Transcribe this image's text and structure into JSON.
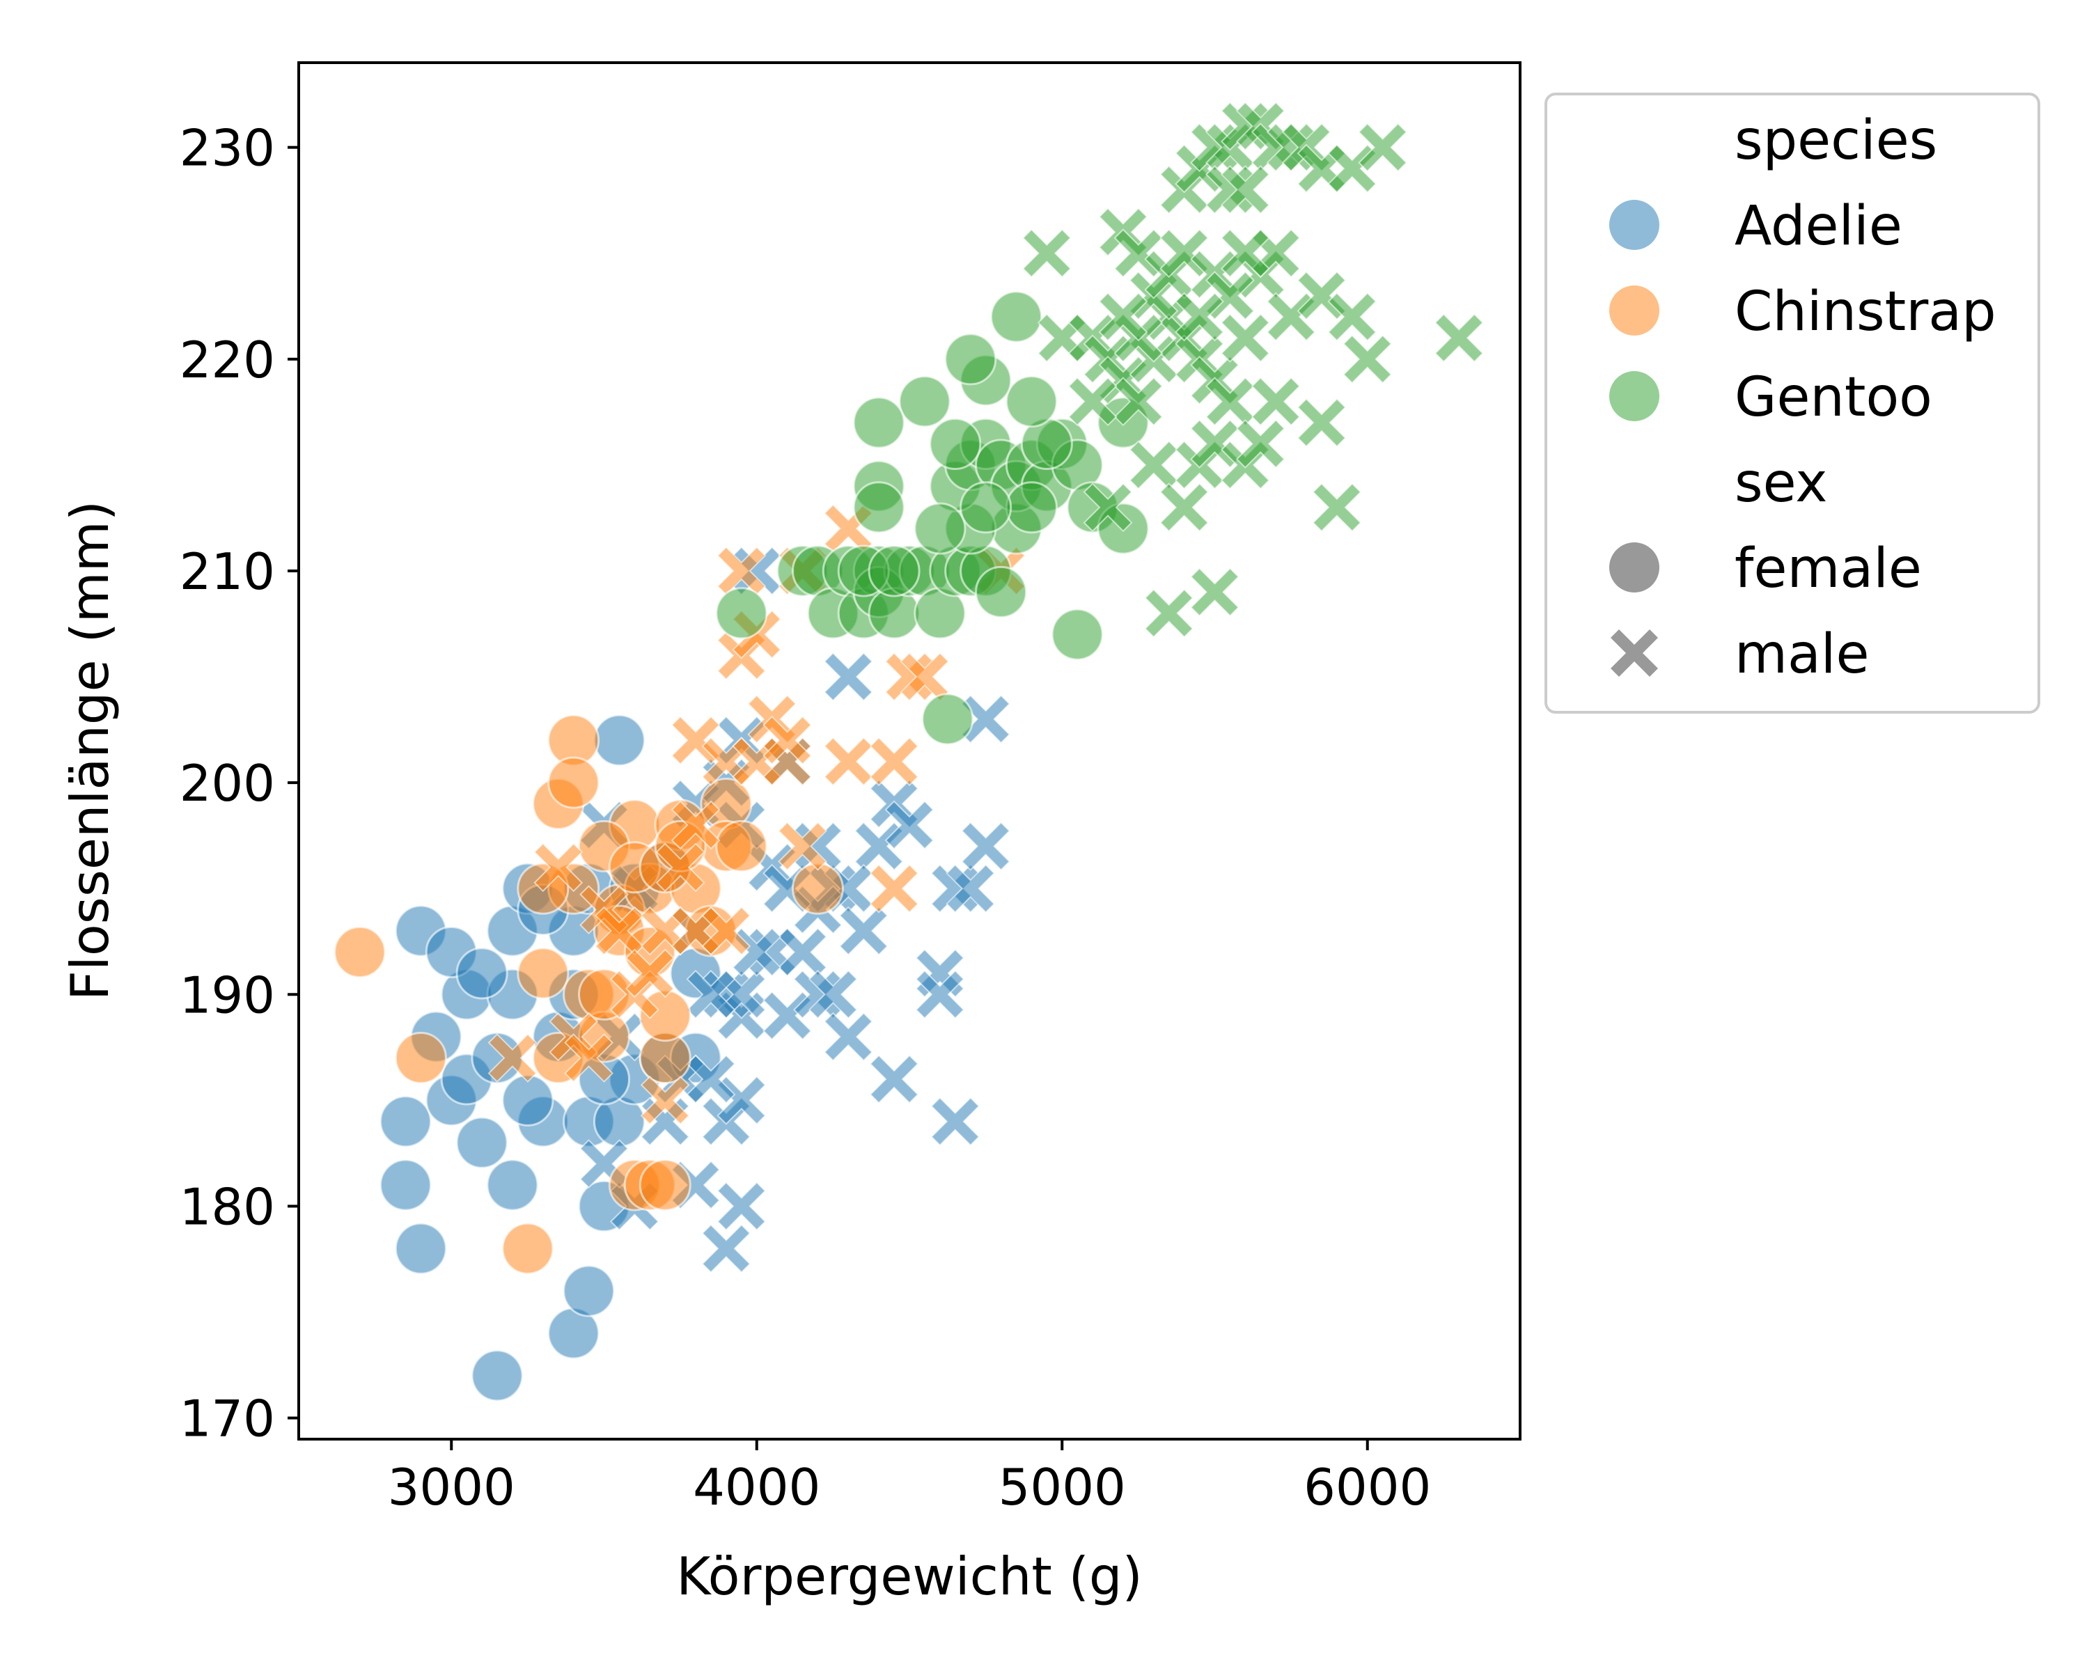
{
  "chart_data": {
    "type": "scatter",
    "title": "",
    "xlabel": "Körpergewicht (g)",
    "ylabel": "Flossenlänge (mm)",
    "xlim": [
      2500,
      6500
    ],
    "ylim": [
      169,
      234
    ],
    "xticks": [
      3000,
      4000,
      5000,
      6000
    ],
    "yticks": [
      170,
      180,
      190,
      200,
      210,
      220,
      230
    ],
    "grid": false,
    "marker_opacity": 0.5,
    "legend": {
      "position": "outside-right-top",
      "hue_title": "species",
      "style_title": "sex",
      "hue_entries": [
        {
          "label": "Adelie",
          "color": "#1f77b4"
        },
        {
          "label": "Chinstrap",
          "color": "#ff7f0e"
        },
        {
          "label": "Gentoo",
          "color": "#2ca02c"
        }
      ],
      "style_entries": [
        {
          "label": "female",
          "marker": "circle"
        },
        {
          "label": "male",
          "marker": "x"
        }
      ]
    },
    "series": [
      {
        "name": "Adelie",
        "sex": "female",
        "marker": "circle",
        "color": "#1f77b4",
        "points": [
          [
            3150,
            172
          ],
          [
            3400,
            174
          ],
          [
            3450,
            176
          ],
          [
            2900,
            178
          ],
          [
            2850,
            181
          ],
          [
            3200,
            181
          ],
          [
            3500,
            180
          ],
          [
            2850,
            184
          ],
          [
            3100,
            183
          ],
          [
            3300,
            184
          ],
          [
            3000,
            185
          ],
          [
            3250,
            185
          ],
          [
            3450,
            184
          ],
          [
            3550,
            184
          ],
          [
            3600,
            186
          ],
          [
            3050,
            186
          ],
          [
            3150,
            187
          ],
          [
            3700,
            187
          ],
          [
            3800,
            187
          ],
          [
            2950,
            188
          ],
          [
            3350,
            188
          ],
          [
            3050,
            190
          ],
          [
            3200,
            190
          ],
          [
            3400,
            190
          ],
          [
            2900,
            193
          ],
          [
            3000,
            192
          ],
          [
            3200,
            193
          ],
          [
            3400,
            193
          ],
          [
            3450,
            195
          ],
          [
            3250,
            195
          ],
          [
            3300,
            194
          ],
          [
            3600,
            195
          ],
          [
            3550,
            202
          ],
          [
            3700,
            196
          ],
          [
            3800,
            191
          ],
          [
            3100,
            191
          ],
          [
            3500,
            186
          ]
        ]
      },
      {
        "name": "Adelie",
        "sex": "male",
        "marker": "x",
        "color": "#1f77b4",
        "points": [
          [
            3600,
            180
          ],
          [
            3800,
            181
          ],
          [
            3900,
            178
          ],
          [
            3950,
            180
          ],
          [
            3900,
            184
          ],
          [
            3950,
            185
          ],
          [
            3500,
            182
          ],
          [
            3700,
            184
          ],
          [
            3750,
            186
          ],
          [
            3850,
            186
          ],
          [
            3950,
            189
          ],
          [
            4100,
            189
          ],
          [
            3900,
            190
          ],
          [
            3950,
            190
          ],
          [
            4050,
            192
          ],
          [
            4150,
            192
          ],
          [
            4200,
            190
          ],
          [
            4250,
            190
          ],
          [
            4300,
            188
          ],
          [
            4450,
            186
          ],
          [
            4650,
            184
          ],
          [
            4600,
            191
          ],
          [
            4600,
            190
          ],
          [
            4650,
            195
          ],
          [
            4700,
            195
          ],
          [
            4750,
            197
          ],
          [
            4400,
            197
          ],
          [
            4450,
            199
          ],
          [
            4500,
            198
          ],
          [
            4250,
            195
          ],
          [
            4300,
            195
          ],
          [
            4200,
            194
          ],
          [
            4050,
            196
          ],
          [
            3950,
            198
          ],
          [
            3800,
            199
          ],
          [
            3900,
            200
          ],
          [
            3950,
            202
          ],
          [
            4100,
            201
          ],
          [
            4300,
            205
          ],
          [
            4750,
            203
          ],
          [
            3500,
            198
          ],
          [
            3600,
            195
          ],
          [
            3800,
            193
          ],
          [
            4000,
            192
          ],
          [
            4100,
            195
          ],
          [
            4350,
            193
          ],
          [
            3550,
            188
          ],
          [
            4200,
            197
          ],
          [
            4000,
            210
          ],
          [
            3850,
            190
          ]
        ]
      },
      {
        "name": "Chinstrap",
        "sex": "female",
        "marker": "circle",
        "color": "#ff7f0e",
        "points": [
          [
            2700,
            192
          ],
          [
            2900,
            187
          ],
          [
            3250,
            178
          ],
          [
            3300,
            191
          ],
          [
            3350,
            187
          ],
          [
            3350,
            199
          ],
          [
            3400,
            202
          ],
          [
            3400,
            200
          ],
          [
            3450,
            190
          ],
          [
            3500,
            188
          ],
          [
            3550,
            194
          ],
          [
            3550,
            193
          ],
          [
            3600,
            181
          ],
          [
            3650,
            181
          ],
          [
            3700,
            181
          ],
          [
            3600,
            198
          ],
          [
            3650,
            195
          ],
          [
            3700,
            187
          ],
          [
            3700,
            189
          ],
          [
            3750,
            198
          ],
          [
            3800,
            195
          ],
          [
            3850,
            193
          ],
          [
            3900,
            199
          ],
          [
            3900,
            197
          ],
          [
            3950,
            197
          ],
          [
            3500,
            197
          ],
          [
            3600,
            196
          ],
          [
            3650,
            192
          ],
          [
            3700,
            196
          ],
          [
            3750,
            197
          ],
          [
            3400,
            195
          ],
          [
            3500,
            190
          ],
          [
            4200,
            195
          ],
          [
            3300,
            195
          ]
        ]
      },
      {
        "name": "Chinstrap",
        "sex": "male",
        "marker": "x",
        "color": "#ff7f0e",
        "points": [
          [
            3200,
            187
          ],
          [
            3400,
            188
          ],
          [
            3450,
            187
          ],
          [
            3500,
            194
          ],
          [
            3550,
            193
          ],
          [
            3600,
            190
          ],
          [
            3650,
            191
          ],
          [
            3700,
            193
          ],
          [
            3700,
            185
          ],
          [
            3750,
            196
          ],
          [
            3800,
            193
          ],
          [
            3800,
            202
          ],
          [
            3900,
            201
          ],
          [
            3950,
            206
          ],
          [
            4000,
            207
          ],
          [
            3950,
            210
          ],
          [
            4050,
            203
          ],
          [
            4000,
            201
          ],
          [
            4100,
            201
          ],
          [
            4100,
            202
          ],
          [
            4150,
            197
          ],
          [
            4150,
            210
          ],
          [
            4300,
            201
          ],
          [
            4300,
            212
          ],
          [
            4450,
            201
          ],
          [
            4450,
            195
          ],
          [
            4500,
            205
          ],
          [
            4550,
            205
          ],
          [
            4800,
            210
          ],
          [
            3350,
            196
          ],
          [
            3800,
            198
          ],
          [
            3900,
            193
          ]
        ]
      },
      {
        "name": "Gentoo",
        "sex": "female",
        "marker": "circle",
        "color": "#2ca02c",
        "points": [
          [
            3950,
            208
          ],
          [
            4150,
            210
          ],
          [
            4200,
            210
          ],
          [
            4250,
            208
          ],
          [
            4300,
            210
          ],
          [
            4350,
            208
          ],
          [
            4400,
            210
          ],
          [
            4400,
            209
          ],
          [
            4450,
            208
          ],
          [
            4500,
            210
          ],
          [
            4550,
            210
          ],
          [
            4600,
            208
          ],
          [
            4650,
            210
          ],
          [
            4700,
            210
          ],
          [
            4750,
            210
          ],
          [
            4800,
            209
          ],
          [
            4850,
            212
          ],
          [
            4700,
            212
          ],
          [
            4650,
            214
          ],
          [
            4700,
            215
          ],
          [
            4750,
            216
          ],
          [
            4800,
            215
          ],
          [
            4850,
            214
          ],
          [
            4900,
            215
          ],
          [
            4950,
            214
          ],
          [
            5000,
            216
          ],
          [
            5050,
            215
          ],
          [
            4950,
            216
          ],
          [
            4900,
            218
          ],
          [
            4750,
            219
          ],
          [
            4700,
            220
          ],
          [
            4850,
            222
          ],
          [
            4650,
            216
          ],
          [
            4550,
            218
          ],
          [
            4400,
            217
          ],
          [
            4400,
            214
          ],
          [
            4400,
            213
          ],
          [
            4350,
            210
          ],
          [
            5100,
            213
          ],
          [
            5200,
            212
          ],
          [
            5200,
            217
          ],
          [
            5050,
            207
          ],
          [
            4625,
            203
          ],
          [
            4450,
            210
          ],
          [
            4600,
            212
          ],
          [
            4900,
            213
          ],
          [
            4750,
            213
          ]
        ]
      },
      {
        "name": "Gentoo",
        "sex": "male",
        "marker": "x",
        "color": "#2ca02c",
        "points": [
          [
            5000,
            221
          ],
          [
            5100,
            221
          ],
          [
            5150,
            220
          ],
          [
            5200,
            219
          ],
          [
            5250,
            218
          ],
          [
            5300,
            220
          ],
          [
            5350,
            222
          ],
          [
            5400,
            221
          ],
          [
            5450,
            220
          ],
          [
            5500,
            219
          ],
          [
            5550,
            218
          ],
          [
            5600,
            221
          ],
          [
            5650,
            224
          ],
          [
            5700,
            225
          ],
          [
            5750,
            222
          ],
          [
            5850,
            223
          ],
          [
            5950,
            222
          ],
          [
            6000,
            220
          ],
          [
            6300,
            221
          ],
          [
            5200,
            226
          ],
          [
            5250,
            225
          ],
          [
            5300,
            223
          ],
          [
            5350,
            224
          ],
          [
            5400,
            225
          ],
          [
            5500,
            224
          ],
          [
            5550,
            223
          ],
          [
            5600,
            225
          ],
          [
            5400,
            228
          ],
          [
            5450,
            229
          ],
          [
            5500,
            230
          ],
          [
            5550,
            230
          ],
          [
            5600,
            231
          ],
          [
            5650,
            231
          ],
          [
            5700,
            230
          ],
          [
            5750,
            230
          ],
          [
            5800,
            230
          ],
          [
            5850,
            229
          ],
          [
            5950,
            229
          ],
          [
            6050,
            230
          ],
          [
            5550,
            228
          ],
          [
            5600,
            228
          ],
          [
            4950,
            225
          ],
          [
            5150,
            213
          ],
          [
            5300,
            215
          ],
          [
            5400,
            213
          ],
          [
            5450,
            215
          ],
          [
            5500,
            216
          ],
          [
            5600,
            215
          ],
          [
            5650,
            216
          ],
          [
            5700,
            218
          ],
          [
            5850,
            217
          ],
          [
            5900,
            213
          ],
          [
            5350,
            208
          ],
          [
            5500,
            209
          ],
          [
            5450,
            222
          ],
          [
            5250,
            221
          ],
          [
            5100,
            218
          ],
          [
            5200,
            222
          ]
        ]
      }
    ]
  }
}
